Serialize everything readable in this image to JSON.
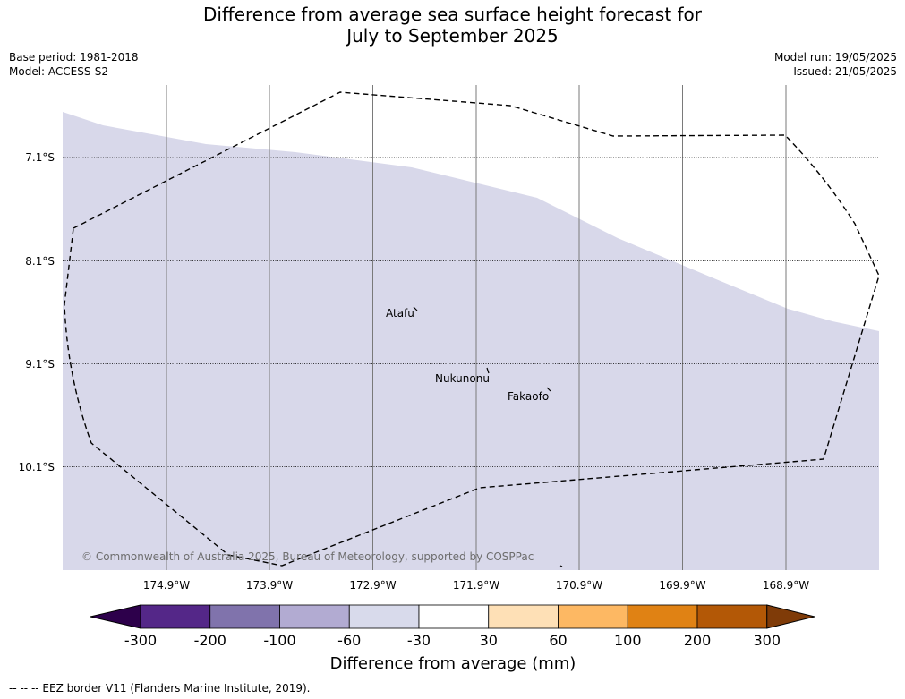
{
  "title": {
    "line1": "Difference from average sea surface height forecast for",
    "line2": "July to September 2025"
  },
  "meta": {
    "base_period": "Base period: 1981-2018",
    "model": "Model: ACCESS-S2",
    "model_run": "Model run: 19/05/2025",
    "issued": "Issued: 21/05/2025"
  },
  "map": {
    "lat_labels": [
      "7.1°S",
      "8.1°S",
      "9.1°S",
      "10.1°S"
    ],
    "lon_labels": [
      "174.9°W",
      "173.9°W",
      "172.9°W",
      "171.9°W",
      "170.9°W",
      "169.9°W",
      "168.9°W"
    ],
    "places": [
      "Atafu",
      "Nukunonu",
      "Fakaofo"
    ],
    "copyright": "© Commonwealth of Australia 2025, Bureau of Meteorology, supported by COSPPac",
    "fill_category": "-60 to -30 mm",
    "colors": {
      "fill": "#d8d8ea"
    }
  },
  "colorbar": {
    "ticks": [
      "-300",
      "-200",
      "-100",
      "-60",
      "-30",
      "30",
      "60",
      "100",
      "200",
      "300"
    ],
    "colors": [
      "#2d004b",
      "#542788",
      "#8073ac",
      "#b2abd2",
      "#d8daeb",
      "#ffffff",
      "#fee0b6",
      "#fdb863",
      "#e08214",
      "#b35806",
      "#7f3b08"
    ],
    "title": "Difference from average (mm)"
  },
  "footnote": "--  --  -- EEZ border V11 (Flanders Marine Institute, 2019)."
}
